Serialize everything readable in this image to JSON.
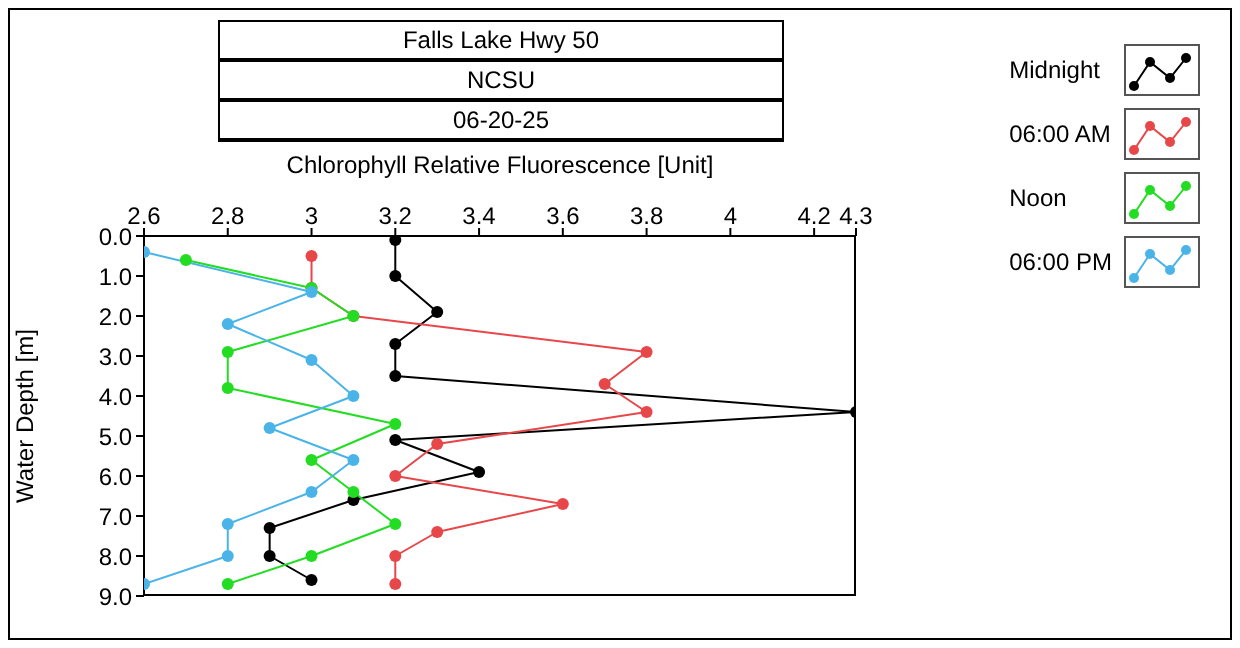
{
  "chart_data": {
    "type": "line",
    "title": "Falls Lake Hwy 50",
    "subtitle": "NCSU",
    "annotations": [
      "06-20-25"
    ],
    "xlabel": "Chlorophyll Relative Fluorescence [Unit]",
    "ylabel": "Water Depth [m]",
    "xlim": [
      2.6,
      4.3
    ],
    "xticks": [
      2.6,
      2.8,
      3,
      3.2,
      3.4,
      3.6,
      3.8,
      4,
      4.2,
      4.3
    ],
    "ylim": [
      9,
      0
    ],
    "yticks": [
      {
        "value": 0,
        "label": "0.0"
      },
      {
        "value": 1,
        "label": "1.0"
      },
      {
        "value": 2,
        "label": "2.0"
      },
      {
        "value": 3,
        "label": "3.0"
      },
      {
        "value": 4,
        "label": "4.0"
      },
      {
        "value": 5,
        "label": "5.0"
      },
      {
        "value": 6,
        "label": "6.0"
      },
      {
        "value": 7,
        "label": "7.0"
      },
      {
        "value": 8,
        "label": "8.0"
      },
      {
        "value": 9,
        "label": "9.0"
      }
    ],
    "grid": false,
    "legend": "top right",
    "marker": "circle",
    "line_style": "solid",
    "series": [
      {
        "name": "Midnight",
        "color": "#000000",
        "x": [
          3.2,
          3.2,
          3.3,
          3.2,
          3.2,
          4.3,
          3.2,
          3.4,
          3.1,
          2.9,
          2.9,
          3.0
        ],
        "values": [
          0.1,
          1.0,
          1.9,
          2.7,
          3.5,
          4.4,
          5.1,
          5.9,
          6.6,
          7.3,
          8.0,
          8.6
        ]
      },
      {
        "name": "06:00 AM",
        "color": "#e8474a",
        "x": [
          3.0,
          3.0,
          3.1,
          3.8,
          3.7,
          3.8,
          3.3,
          3.2,
          3.6,
          3.3,
          3.2,
          3.2
        ],
        "values": [
          0.5,
          1.3,
          2.0,
          2.9,
          3.7,
          4.4,
          5.2,
          6.0,
          6.7,
          7.4,
          8.0,
          8.7
        ]
      },
      {
        "name": "Noon",
        "color": "#22dd22",
        "x": [
          2.7,
          3.0,
          3.1,
          2.8,
          2.8,
          3.2,
          3.0,
          3.1,
          3.2,
          3.0,
          2.8
        ],
        "values": [
          0.6,
          1.3,
          2.0,
          2.9,
          3.8,
          4.7,
          5.6,
          6.4,
          7.2,
          8.0,
          8.7
        ]
      },
      {
        "name": "06:00 PM",
        "color": "#4ab4e8",
        "x": [
          2.6,
          3.0,
          2.8,
          3.0,
          3.1,
          2.9,
          3.1,
          3.0,
          2.8,
          2.8,
          2.6
        ],
        "values": [
          0.4,
          1.4,
          2.2,
          3.1,
          4.0,
          4.8,
          5.6,
          6.4,
          7.2,
          8.0,
          8.7
        ]
      }
    ]
  }
}
